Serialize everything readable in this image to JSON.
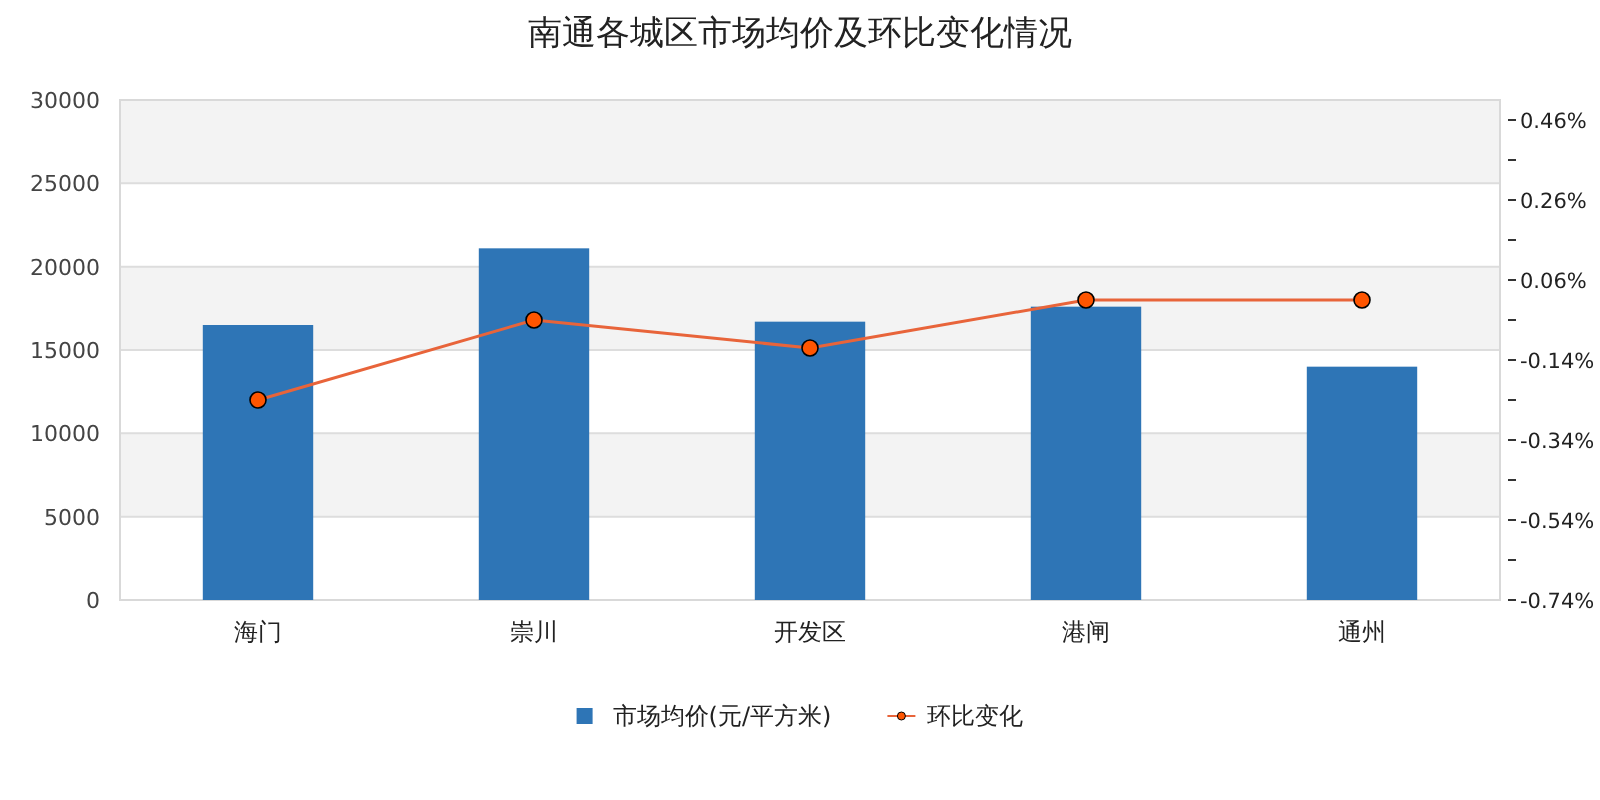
{
  "chart_data": {
    "type": "bar",
    "title": "南通各城区市场均价及环比变化情况",
    "categories": [
      "海门",
      "崇川",
      "开发区",
      "港闸",
      "通州"
    ],
    "series": [
      {
        "name": "市场均价(元/平方米)",
        "color": "#2e75b6",
        "values": [
          16500,
          21100,
          16700,
          17600,
          14000
        ]
      },
      {
        "name": "环比变化",
        "type": "line",
        "axis": "y2",
        "color": "#e8643a",
        "marker": "circle",
        "values": [
          -0.24,
          -0.04,
          -0.11,
          0.01,
          0.01
        ]
      }
    ],
    "ylim": [
      0,
      30000
    ],
    "yticks": [
      0,
      5000,
      10000,
      15000,
      20000,
      25000,
      30000
    ],
    "y2lim": [
      -0.74,
      0.51
    ],
    "y2ticks": [
      {
        "value": -0.74,
        "label": "-0.74%"
      },
      {
        "value": -0.64,
        "label": null
      },
      {
        "value": -0.54,
        "label": "-0.54%"
      },
      {
        "value": -0.44,
        "label": null
      },
      {
        "value": -0.34,
        "label": "-0.34%"
      },
      {
        "value": -0.24,
        "label": null
      },
      {
        "value": -0.14,
        "label": "-0.14%"
      },
      {
        "value": -0.04,
        "label": null
      },
      {
        "value": 0.06,
        "label": "0.06%"
      },
      {
        "value": 0.16,
        "label": null
      },
      {
        "value": 0.26,
        "label": "0.26%"
      },
      {
        "value": 0.36,
        "label": null
      },
      {
        "value": 0.46,
        "label": "0.46%"
      }
    ],
    "grid": "y",
    "legend": "bottom"
  }
}
